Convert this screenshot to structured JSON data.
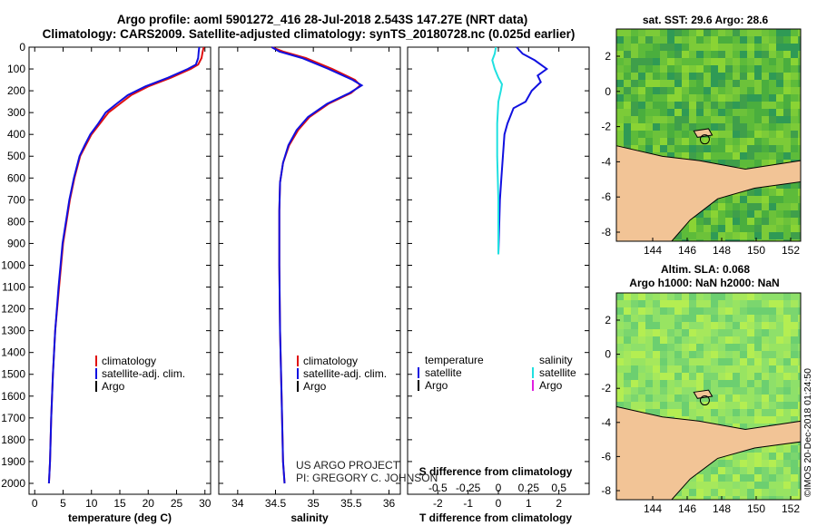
{
  "header": {
    "line1": "Argo profile: aoml 5901272_416 28-Jul-2018 2.543S 147.27E (NRT data)",
    "line2": "Climatology: CARS2009. Satellite-adjusted climatology: synTS_20180728.nc (0.025d earlier)"
  },
  "colors": {
    "climatology": "#e01010",
    "satellite": "#1010e0",
    "argo": "#000000",
    "sal_satellite": "#20e0e0",
    "sal_argo": "#e020e0",
    "land": "#f2c496"
  },
  "chart_data": [
    {
      "type": "line",
      "name": "temperature",
      "xlabel": "temperature (deg C)",
      "ylabel": "",
      "xlim": [
        -1,
        31
      ],
      "ylim": [
        2050,
        0
      ],
      "xticks": [
        "0",
        "5",
        "10",
        "15",
        "20",
        "25",
        "30"
      ],
      "xtick_values": [
        0,
        5,
        10,
        15,
        20,
        25,
        30
      ],
      "yticks": [
        "0",
        "100",
        "200",
        "300",
        "400",
        "500",
        "600",
        "700",
        "800",
        "900",
        "1000",
        "1100",
        "1200",
        "1300",
        "1400",
        "1500",
        "1600",
        "1700",
        "1800",
        "1900",
        "2000"
      ],
      "ytick_values": [
        0,
        100,
        200,
        300,
        400,
        500,
        600,
        700,
        800,
        900,
        1000,
        1100,
        1200,
        1300,
        1400,
        1500,
        1600,
        1700,
        1800,
        1900,
        2000
      ],
      "legend": [
        "climatology",
        "satellite-adj. clim.",
        "Argo"
      ],
      "series": [
        {
          "name": "climatology",
          "color": "#e01010",
          "x": [
            29.8,
            29.6,
            29.4,
            28.8,
            27.5,
            24.0,
            20.0,
            17.0,
            15.0,
            13.0,
            11.5,
            10.0,
            9.0,
            8.0,
            7.0,
            6.2,
            5.0,
            4.3,
            3.6,
            3.2,
            2.9,
            2.7,
            2.5
          ],
          "y": [
            0,
            20,
            50,
            80,
            100,
            140,
            180,
            220,
            260,
            300,
            350,
            400,
            450,
            500,
            600,
            700,
            900,
            1100,
            1300,
            1500,
            1700,
            1900,
            2000
          ]
        },
        {
          "name": "satellite-adj. clim.",
          "color": "#1010e0",
          "x": [
            29.0,
            28.9,
            28.8,
            28.4,
            27.0,
            23.5,
            19.5,
            16.4,
            14.4,
            12.5,
            11.2,
            9.8,
            8.8,
            7.9,
            6.9,
            6.1,
            4.9,
            4.2,
            3.6,
            3.2,
            2.9,
            2.7,
            2.5
          ],
          "y": [
            0,
            20,
            50,
            80,
            100,
            140,
            180,
            220,
            260,
            300,
            350,
            400,
            450,
            500,
            600,
            700,
            900,
            1100,
            1300,
            1500,
            1700,
            1900,
            2000
          ]
        }
      ]
    },
    {
      "type": "line",
      "name": "salinity",
      "xlabel": "salinity",
      "xlim": [
        33.75,
        36.15
      ],
      "ylim": [
        2050,
        0
      ],
      "xticks": [
        "34",
        "34.5",
        "35",
        "35.5",
        "36"
      ],
      "xtick_values": [
        34,
        34.5,
        35,
        35.5,
        36
      ],
      "legend": [
        "climatology",
        "satellite-adj. clim.",
        "Argo"
      ],
      "series": [
        {
          "name": "climatology",
          "color": "#e01010",
          "x": [
            34.45,
            34.6,
            34.9,
            35.25,
            35.55,
            35.62,
            35.5,
            35.2,
            34.95,
            34.8,
            34.68,
            34.6,
            34.56,
            34.55,
            34.55,
            34.56,
            34.58,
            34.6,
            34.62
          ],
          "y": [
            0,
            20,
            50,
            100,
            150,
            175,
            210,
            260,
            320,
            380,
            450,
            530,
            620,
            750,
            1000,
            1300,
            1600,
            1900,
            2000
          ]
        },
        {
          "name": "satellite-adj. clim.",
          "color": "#1010e0",
          "x": [
            34.45,
            34.55,
            34.85,
            35.2,
            35.52,
            35.64,
            35.48,
            35.18,
            34.93,
            34.78,
            34.67,
            34.6,
            34.56,
            34.55,
            34.55,
            34.56,
            34.58,
            34.6,
            34.62
          ],
          "y": [
            0,
            20,
            50,
            100,
            150,
            175,
            210,
            260,
            320,
            380,
            450,
            530,
            620,
            750,
            1000,
            1300,
            1600,
            1900,
            2000
          ]
        }
      ]
    },
    {
      "type": "line",
      "name": "difference",
      "xlabel": "T difference from climatology",
      "xlabel_top": "S difference from climatology",
      "xlim": [
        -3,
        3
      ],
      "ylim": [
        2050,
        0
      ],
      "xticks": [
        "-2",
        "-1",
        "0",
        "1",
        "2"
      ],
      "xtick_values": [
        -2,
        -1,
        0,
        1,
        2
      ],
      "sticks": [
        "-0.5",
        "-0.25",
        "0",
        "0.25",
        "0.5"
      ],
      "stick_values": [
        -0.5,
        -0.25,
        0,
        0.25,
        0.5
      ],
      "legend_temp_title": "temperature",
      "legend_sal_title": "salinity",
      "legend_temp": [
        "satellite",
        "Argo"
      ],
      "legend_sal": [
        "satellite",
        "Argo"
      ],
      "series": [
        {
          "name": "T satellite",
          "color": "#1010e0",
          "x": [
            0.6,
            0.8,
            1.2,
            1.6,
            1.3,
            1.4,
            1.1,
            0.9,
            0.5,
            0.3,
            0.2,
            0.15,
            0.1,
            0.05,
            0.02,
            0.0
          ],
          "y": [
            0,
            30,
            60,
            100,
            130,
            160,
            200,
            250,
            280,
            350,
            400,
            500,
            600,
            700,
            850,
            950
          ]
        },
        {
          "name": "S satellite",
          "color": "#20e0e0",
          "x": [
            -0.02,
            -0.03,
            -0.05,
            -0.03,
            0.0,
            0.03,
            0.02,
            0.0,
            -0.01,
            -0.01,
            0.0,
            0.0
          ],
          "y": [
            0,
            30,
            60,
            100,
            140,
            170,
            200,
            250,
            350,
            500,
            700,
            950
          ]
        }
      ]
    }
  ],
  "maps": [
    {
      "title": "sat. SST: 29.6 Argo: 28.6",
      "xticks": [
        "144",
        "146",
        "148",
        "150",
        "152"
      ],
      "yticks": [
        "2",
        "0",
        "-2",
        "-4",
        "-6",
        "-8"
      ]
    },
    {
      "title1": "Altim. SLA: 0.068",
      "title2": "Argo h1000: NaN h2000: NaN",
      "xticks": [
        "144",
        "146",
        "148",
        "150",
        "152"
      ],
      "yticks": [
        "2",
        "0",
        "-2",
        "-4",
        "-6",
        "-8"
      ]
    }
  ],
  "footer": {
    "credit1": "US ARGO PROJECT",
    "credit2": "PI: GREGORY C. JOHNSON",
    "stamp": "©IMOS 20-Dec-2018 01:24:50"
  }
}
